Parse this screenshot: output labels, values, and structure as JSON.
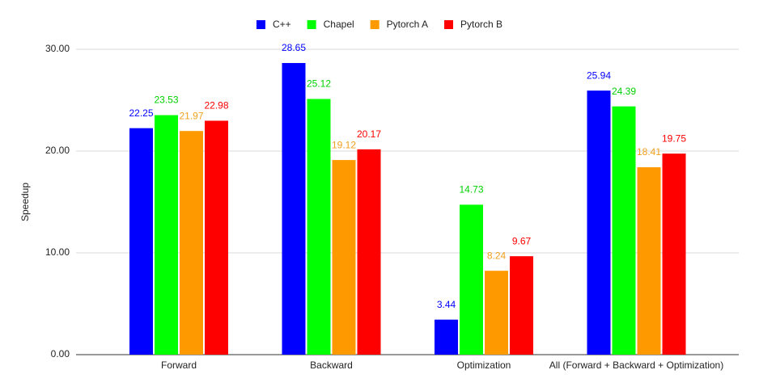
{
  "chart_data": {
    "type": "bar",
    "y_label": "Speedup",
    "categories": [
      "Forward",
      "Backward",
      "Optimization",
      "All (Forward + Backward + Optimization)"
    ],
    "series": [
      {
        "name": "C++",
        "color": "#0000ff",
        "values": [
          22.25,
          28.65,
          3.44,
          25.94
        ]
      },
      {
        "name": "Chapel",
        "color": "#00ff00",
        "values": [
          23.53,
          25.12,
          14.73,
          24.39
        ]
      },
      {
        "name": "Pytorch A",
        "color": "#ff9900",
        "values": [
          21.97,
          19.12,
          8.24,
          18.41
        ]
      },
      {
        "name": "Pytorch B",
        "color": "#ff0000",
        "values": [
          22.98,
          20.17,
          9.67,
          19.75
        ]
      }
    ],
    "label_colors": [
      "#0000ff",
      "#00d000",
      "#f0a020",
      "#ff0000"
    ],
    "ylim": [
      0,
      30
    ],
    "yticks": [
      {
        "value": 0,
        "label": "0.00"
      },
      {
        "value": 10,
        "label": "10.00"
      },
      {
        "value": 20,
        "label": "20.00"
      },
      {
        "value": 30,
        "label": "30.00"
      }
    ],
    "grid": true,
    "legend": "top"
  }
}
